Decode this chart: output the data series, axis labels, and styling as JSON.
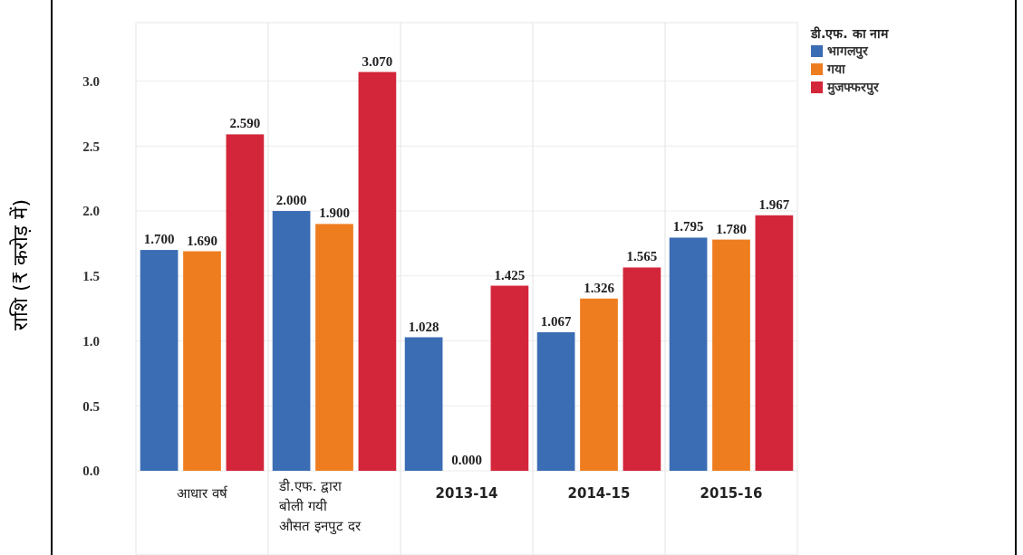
{
  "chart_data": {
    "type": "bar",
    "ylabel": "राशि (₹ करोड़ में)",
    "legend_title": "डी.एफ. का नाम",
    "categories": [
      "आधार वर्ष",
      "डी.एफ. द्वारा\nबोली गयी\nऔसत इनपुट दर",
      "2013-14",
      "2014-15",
      "2015-16"
    ],
    "series": [
      {
        "name": "भागलपुर",
        "color": "#3b6db4",
        "values": [
          1.7,
          2.0,
          1.028,
          1.067,
          1.795
        ],
        "value_labels": [
          "1.700",
          "2.000",
          "1.028",
          "1.067",
          "1.795"
        ]
      },
      {
        "name": "गया",
        "color": "#ee7d1f",
        "values": [
          1.69,
          1.9,
          0,
          1.326,
          1.78
        ],
        "value_labels": [
          "1.690",
          "1.900",
          "0.000",
          "1.326",
          "1.780"
        ]
      },
      {
        "name": "मुजफ्फरपुर",
        "color": "#d3263a",
        "values": [
          2.59,
          3.07,
          1.425,
          1.565,
          1.967
        ],
        "value_labels": [
          "2.590",
          "3.070",
          "1.425",
          "1.565",
          "1.967"
        ]
      }
    ],
    "ylim": [
      0,
      3.45
    ],
    "yticks": [
      {
        "value": 0,
        "label": "0.0"
      },
      {
        "value": 0.5,
        "label": "0.5"
      },
      {
        "value": 1,
        "label": "1.0"
      },
      {
        "value": 1.5,
        "label": "1.5"
      },
      {
        "value": 2,
        "label": "2.0"
      },
      {
        "value": 2.5,
        "label": "2.5"
      },
      {
        "value": 3,
        "label": "3.0"
      }
    ],
    "grid": true,
    "legend": "top right"
  }
}
